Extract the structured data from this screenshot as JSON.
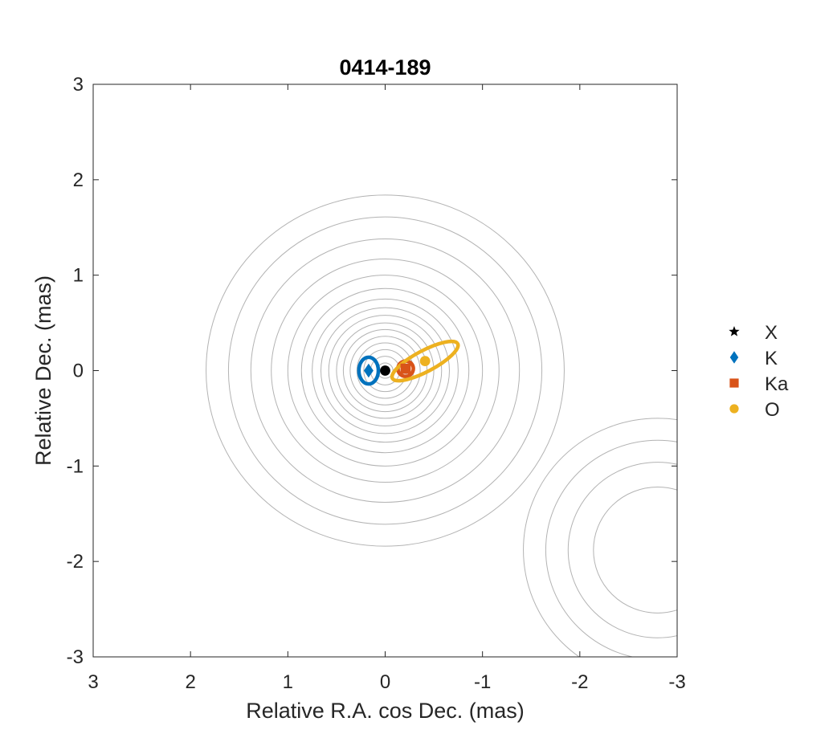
{
  "chart_data": {
    "type": "scatter",
    "title": "0414-189",
    "xlabel": "Relative R.A. cos Dec. (mas)",
    "ylabel": "Relative Dec. (mas)",
    "xlim": [
      3,
      -3
    ],
    "ylim": [
      -3,
      3
    ],
    "x_reversed": true,
    "xticks": [
      3,
      2,
      1,
      0,
      -1,
      -2,
      -3
    ],
    "xtick_labels": [
      "3",
      "2",
      "1",
      "0",
      "-1",
      "-2",
      "-3"
    ],
    "yticks": [
      3,
      2,
      1,
      0,
      -1,
      -2,
      -3
    ],
    "ytick_labels": [
      "3",
      "2",
      "1",
      "0",
      "-1",
      "-2",
      "-3"
    ],
    "grid": false,
    "legend_position": "outside-right",
    "colors": {
      "X": "#000000",
      "K": "#0072bd",
      "Ka": "#d95319",
      "O": "#edb120",
      "contour": "#b3b3b3"
    },
    "series": [
      {
        "name": "X",
        "marker": "star",
        "legend_marker": "star",
        "x": [
          0.0
        ],
        "y": [
          0.0
        ],
        "color": "#000000",
        "plot_marker": "circle",
        "ellipse": null
      },
      {
        "name": "K",
        "marker": "diamond",
        "legend_marker": "diamond",
        "x": [
          0.17
        ],
        "y": [
          0.0
        ],
        "color": "#0072bd",
        "ellipse": {
          "a": 0.1,
          "b": 0.14,
          "angle_deg": 0
        }
      },
      {
        "name": "Ka",
        "marker": "square",
        "legend_marker": "square",
        "x": [
          -0.21
        ],
        "y": [
          0.02
        ],
        "color": "#d95319",
        "ellipse": {
          "a": 0.08,
          "b": 0.08,
          "angle_deg": 20
        }
      },
      {
        "name": "O",
        "marker": "circle",
        "legend_marker": "circle",
        "x": [
          -0.41
        ],
        "y": [
          0.1
        ],
        "color": "#edb120",
        "ellipse": {
          "a": 0.38,
          "b": 0.11,
          "angle_deg": 28
        }
      }
    ],
    "contours": {
      "description": "source brightness contours",
      "components": [
        {
          "x": 0.0,
          "y": 0.0,
          "radii": [
            0.08,
            0.15,
            0.22,
            0.29,
            0.36,
            0.43,
            0.5,
            0.58,
            0.66,
            0.75,
            0.86,
            1.0,
            1.17,
            1.38,
            1.61,
            1.84
          ]
        },
        {
          "x": -2.8,
          "y": -1.88,
          "radii": [
            0.66,
            0.92,
            1.15,
            1.38
          ]
        }
      ]
    }
  }
}
